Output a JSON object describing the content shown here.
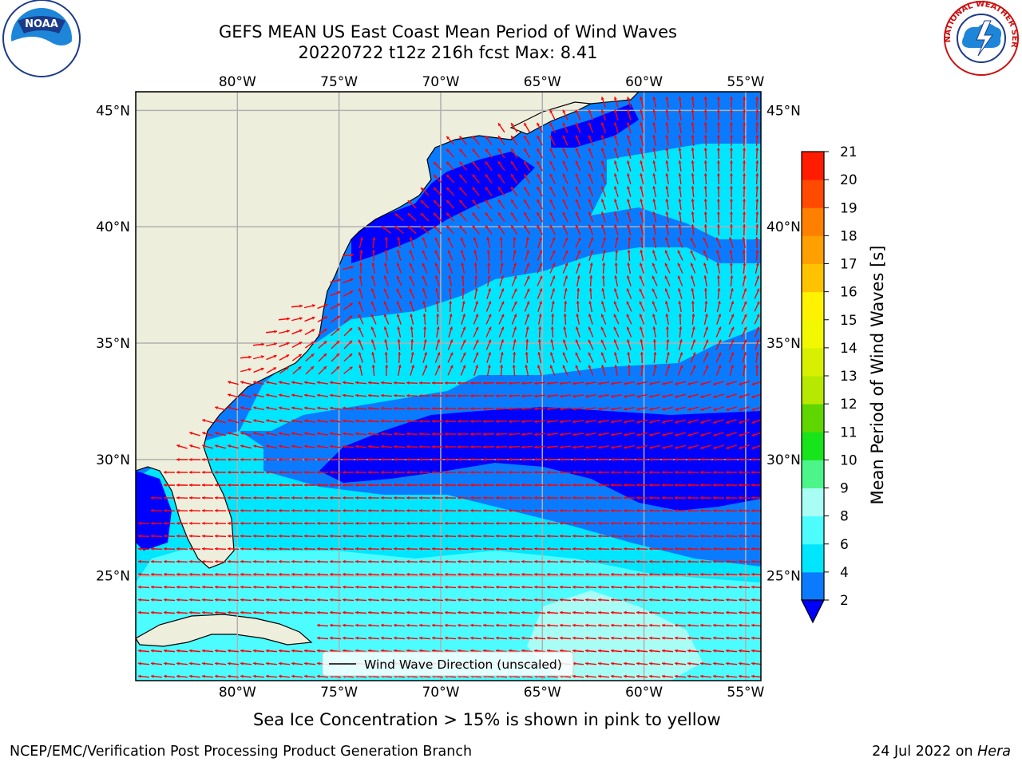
{
  "title_line1": "GEFS MEAN US East Coast Mean Period of Wind Waves",
  "title_line2": "20220722 t12z 216h fcst   Max: 8.41",
  "lon_labels": [
    "80°W",
    "75°W",
    "70°W",
    "65°W",
    "60°W",
    "55°W"
  ],
  "lat_labels": [
    "45°N",
    "40°N",
    "35°N",
    "30°N",
    "25°N"
  ],
  "lon_values": [
    -80,
    -75,
    -70,
    -65,
    -60,
    -55
  ],
  "lat_values": [
    45,
    40,
    35,
    30,
    25
  ],
  "map_extent": {
    "lon_min": -85,
    "lon_max": -54.25,
    "lat_min": 20.5,
    "lat_max": 45.8
  },
  "colorbar": {
    "label": "Mean Period of Wind Waves [s]",
    "ticks": [
      "2",
      "4",
      "6",
      "8",
      "9",
      "10",
      "11",
      "12",
      "13",
      "14",
      "15",
      "16",
      "17",
      "18",
      "19",
      "20",
      "21"
    ],
    "bounds": [
      2,
      4,
      6,
      8,
      9,
      10,
      11,
      12,
      13,
      14,
      15,
      16,
      17,
      18,
      19,
      20,
      21
    ],
    "colors": [
      "#0a7bff",
      "#00e6ff",
      "#4dfcff",
      "#a8fdf5",
      "#4bf58a",
      "#17e41a",
      "#5fd600",
      "#b6e800",
      "#d8f000",
      "#f2f800",
      "#fff200",
      "#ffc200",
      "#ffa000",
      "#ff8000",
      "#ff4a00",
      "#ff1c00"
    ],
    "under_color": "#0000ff"
  },
  "legend_label": "Wind Wave Direction (unscaled)",
  "caption": "Sea Ice Concentration > 15% is shown in pink to yellow",
  "footer_left": "NCEP/EMC/Verification Post Processing Product Generation Branch",
  "footer_date": "24 Jul 2022 on",
  "footer_host": "Hera",
  "logos": {
    "left": "noaa-logo",
    "right": "nws-logo",
    "noaa_text": "NOAA",
    "nws_text": "NATIONAL WEATHER SERVICE"
  },
  "colors": {
    "land": "#eeeedc",
    "arrow": "#ff0000",
    "grid": "#b0b0b0",
    "period_2_4": "#0a7bff",
    "period_4_6": "#00e6ff",
    "period_6_8": "#4dfcff",
    "period_lt2": "#0000ff"
  }
}
